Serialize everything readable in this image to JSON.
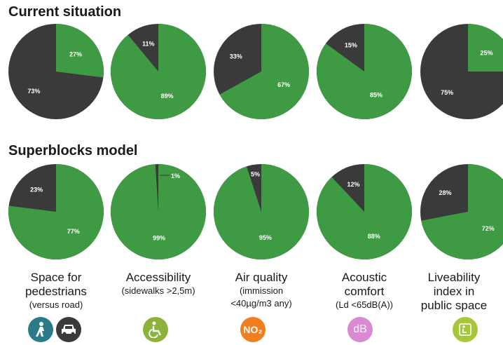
{
  "sections": {
    "current": "Current situation",
    "superblocks": "Superblocks model"
  },
  "colors": {
    "green": "#3f9b43",
    "dark": "#3a3a3a"
  },
  "chart_data": [
    {
      "type": "pie",
      "title": "Current situation",
      "categories": [
        "Space for pedestrians",
        "Accessibility",
        "Air quality",
        "Acoustic comfort",
        "Liveability index in public space"
      ],
      "green_percent": [
        27,
        89,
        67,
        85,
        25
      ],
      "dark_percent": [
        73,
        11,
        33,
        15,
        75
      ],
      "labels_green": [
        "27%",
        "89%",
        "67%",
        "85%",
        "25%"
      ],
      "labels_dark": [
        "73%",
        "11%",
        "33%",
        "15%",
        "75%"
      ]
    },
    {
      "type": "pie",
      "title": "Superblocks model",
      "categories": [
        "Space for pedestrians",
        "Accessibility",
        "Air quality",
        "Acoustic comfort",
        "Liveability index in public space"
      ],
      "green_percent": [
        77,
        99,
        95,
        88,
        72
      ],
      "dark_percent": [
        23,
        1,
        5,
        12,
        28
      ],
      "labels_green": [
        "77%",
        "99%",
        "95%",
        "88%",
        "72%"
      ],
      "labels_dark": [
        "23%",
        "1%",
        "5%",
        "12%",
        "28%"
      ]
    }
  ],
  "indicators": [
    {
      "main": "Space for\npedestrians",
      "sub": "(versus road)",
      "icon": "pedestrian-car-icon",
      "icon_color": "#2a7a8a"
    },
    {
      "main": "Accessibility",
      "sub": "(sidewalks >2,5m)",
      "icon": "wheelchair-icon",
      "icon_color": "#8bb23a"
    },
    {
      "main": "Air quality",
      "sub": "(immission\n<40µg/m3 any)",
      "icon": "no2-icon",
      "icon_color": "#f07d1e",
      "icon_text": "NO₂"
    },
    {
      "main": "Acoustic\ncomfort",
      "sub": "(Ld <65dB(A))",
      "icon": "decibel-icon",
      "icon_color": "#d98ad3",
      "icon_text": "dB"
    },
    {
      "main": "Liveability\nindex in\npublic space",
      "sub": "",
      "icon": "bench-icon",
      "icon_color": "#a6c73a"
    }
  ]
}
